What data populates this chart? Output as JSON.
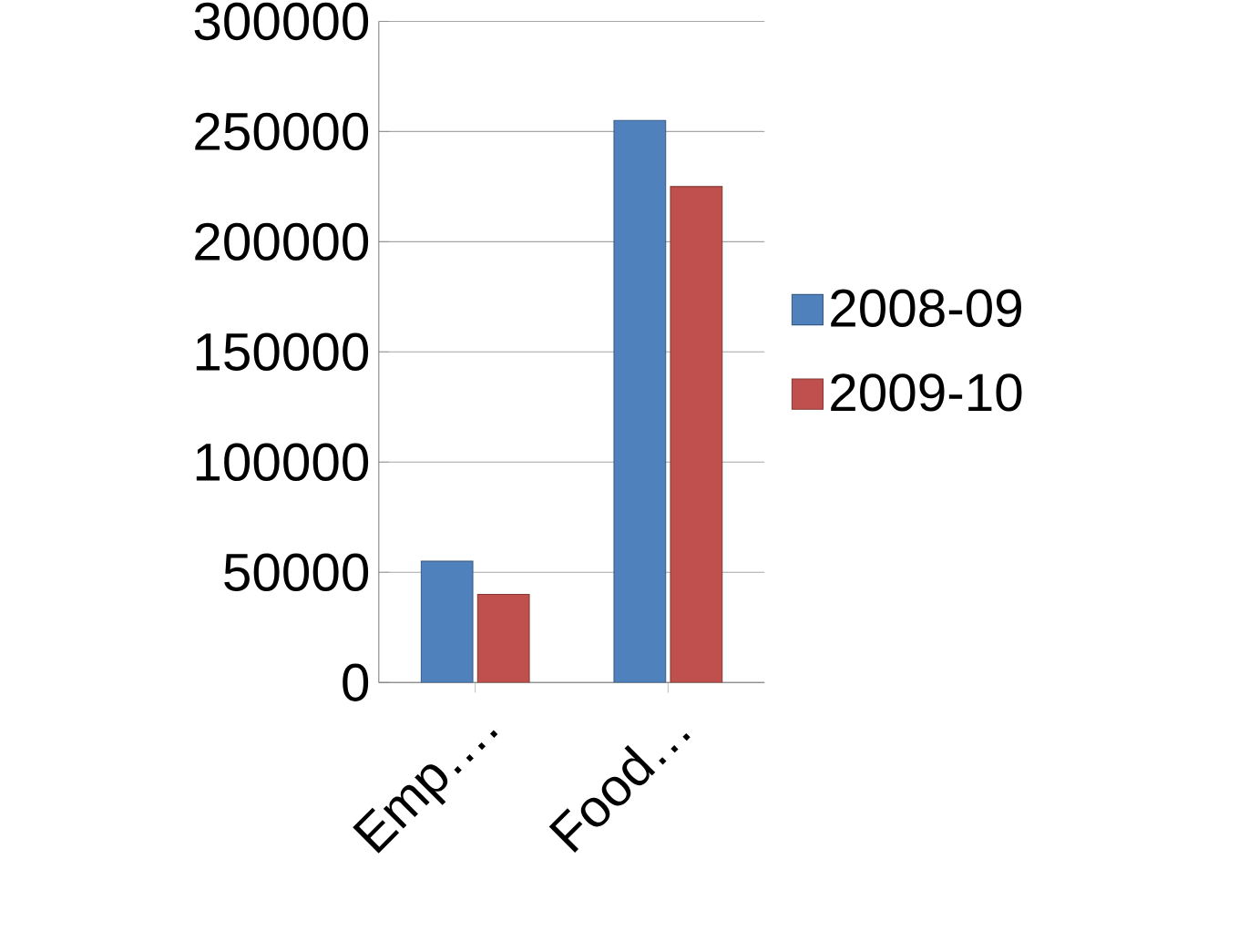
{
  "chart_data": {
    "type": "bar",
    "categories": [
      "Emp….",
      "Food…"
    ],
    "series": [
      {
        "name": "2008-09",
        "color": "#4f81bd",
        "values": [
          55000,
          255000
        ]
      },
      {
        "name": "2009-10",
        "color": "#c0504d",
        "values": [
          40000,
          225000
        ]
      }
    ],
    "ylim": [
      0,
      300000
    ],
    "yticks": [
      0,
      50000,
      100000,
      150000,
      200000,
      250000,
      300000
    ],
    "grid": "y",
    "legend": "right"
  }
}
